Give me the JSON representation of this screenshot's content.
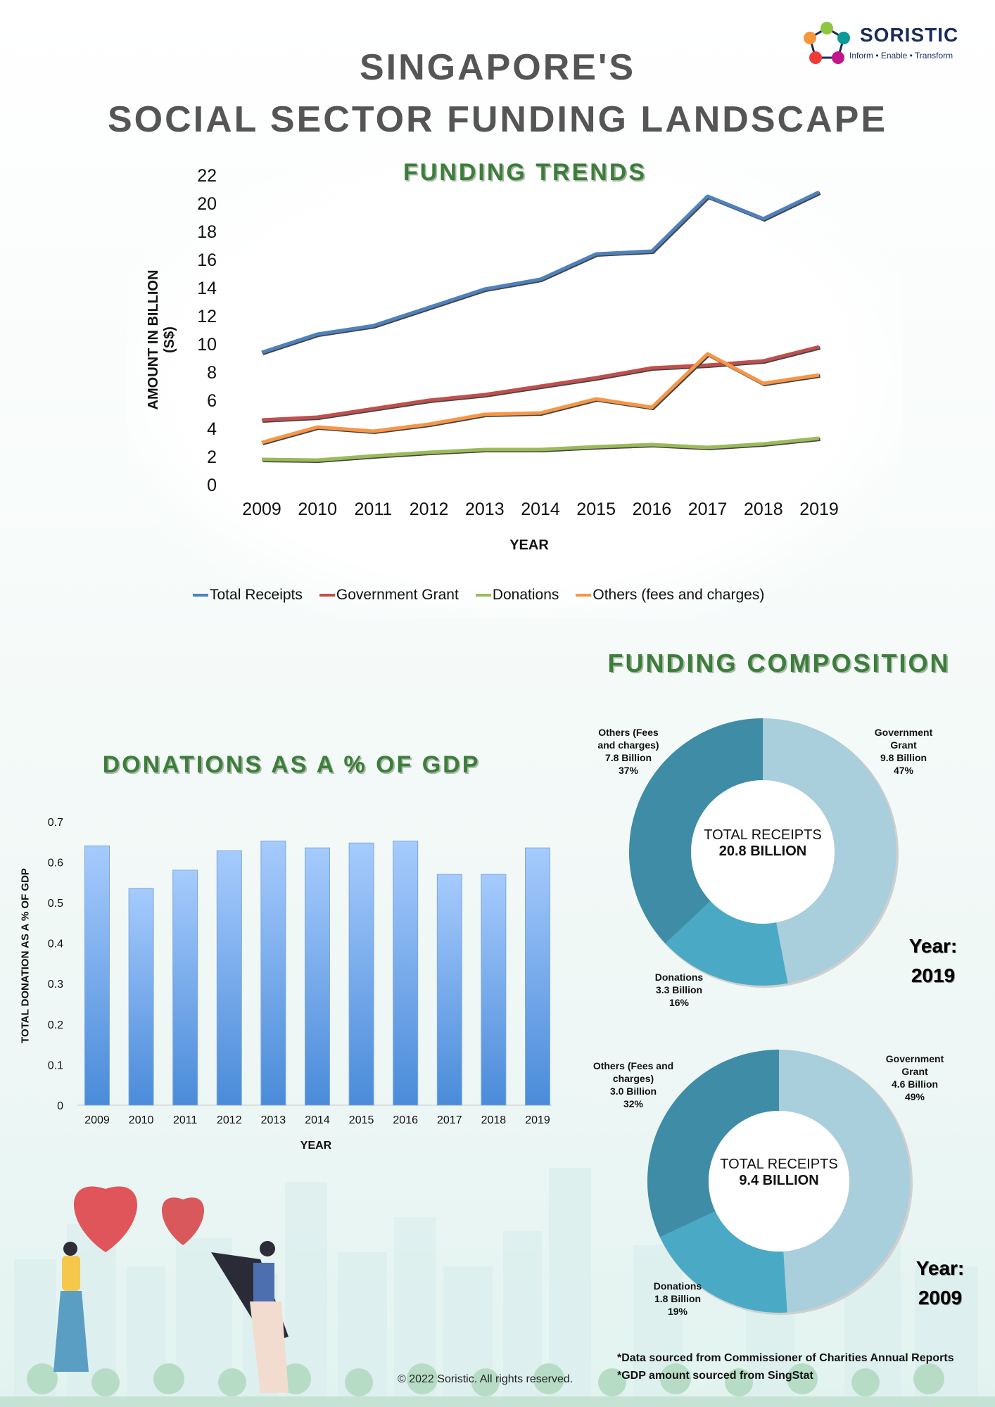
{
  "header": {
    "title_line1": "SINGAPORE'S",
    "title_line2": "SOCIAL SECTOR FUNDING LANDSCAPE",
    "logo_name": "SORISTIC",
    "logo_tagline": "Inform • Enable • Transform"
  },
  "colors": {
    "total": "#4f81bd",
    "gov": "#c0504d",
    "donations": "#9bbb59",
    "others": "#f79646",
    "title_green": "#3d7d3b",
    "bar": "#5b9be0",
    "donut_gov": "#a9cedc",
    "donut_don": "#4aaac5",
    "donut_oth": "#3e8ca5"
  },
  "chart_data": [
    {
      "type": "line",
      "title": "FUNDING TRENDS",
      "xlabel": "YEAR",
      "ylabel": "AMOUNT IN BILLION (S$)",
      "ylim": [
        0,
        22
      ],
      "yticks": [
        "0",
        "2",
        "4",
        "6",
        "8",
        "10",
        "12",
        "14",
        "16",
        "18",
        "20",
        "22"
      ],
      "categories": [
        "2009",
        "2010",
        "2011",
        "2012",
        "2013",
        "2014",
        "2015",
        "2016",
        "2017",
        "2018",
        "2019"
      ],
      "legend_position": "bottom",
      "series": [
        {
          "name": "Total Receipts",
          "color": "#4f81bd",
          "values": [
            9.4,
            10.7,
            11.3,
            12.6,
            13.9,
            14.6,
            16.4,
            16.6,
            20.5,
            18.9,
            20.8
          ]
        },
        {
          "name": "Government Grant",
          "color": "#c0504d",
          "values": [
            4.6,
            4.8,
            5.4,
            6.0,
            6.4,
            7.0,
            7.6,
            8.3,
            8.5,
            8.8,
            9.8
          ]
        },
        {
          "name": "Donations",
          "color": "#9bbb59",
          "values": [
            1.8,
            1.75,
            2.05,
            2.3,
            2.5,
            2.5,
            2.7,
            2.85,
            2.65,
            2.9,
            3.3
          ]
        },
        {
          "name": "Others (fees and charges)",
          "color": "#f79646",
          "values": [
            3.0,
            4.1,
            3.8,
            4.3,
            5.0,
            5.1,
            6.1,
            5.5,
            9.3,
            7.2,
            7.8
          ]
        }
      ]
    },
    {
      "type": "bar",
      "title": "DONATIONS AS A % OF GDP",
      "xlabel": "YEAR",
      "ylabel": "TOTAL DONATION AS A % OF GDP",
      "ylim": [
        0,
        0.7
      ],
      "yticks": [
        "0",
        "0.1",
        "0.2",
        "0.3",
        "0.4",
        "0.5",
        "0.6",
        "0.7"
      ],
      "categories": [
        "2009",
        "2010",
        "2011",
        "2012",
        "2013",
        "2014",
        "2015",
        "2016",
        "2017",
        "2018",
        "2019"
      ],
      "values": [
        0.64,
        0.535,
        0.58,
        0.628,
        0.652,
        0.635,
        0.647,
        0.652,
        0.57,
        0.57,
        0.635
      ]
    },
    {
      "type": "pie",
      "title": "FUNDING COMPOSITION",
      "year_label": "Year:",
      "year": "2019",
      "center_label": "TOTAL RECEIPTS",
      "center_value": "20.8 BILLION",
      "slices": [
        {
          "name": "Government Grant",
          "line1": "Government",
          "line2": "Grant",
          "amount": "9.8 Billion",
          "percent": "47%",
          "value": 47,
          "color": "#a9cedc"
        },
        {
          "name": "Donations",
          "line1": "Donations",
          "line2": "",
          "amount": "3.3 Billion",
          "percent": "16%",
          "value": 16,
          "color": "#4aaac5"
        },
        {
          "name": "Others (Fees and charges)",
          "line1": "Others (Fees",
          "line2": "and charges)",
          "amount": "7.8 Billion",
          "percent": "37%",
          "value": 37,
          "color": "#3e8ca5"
        }
      ]
    },
    {
      "type": "pie",
      "year_label": "Year:",
      "year": "2009",
      "center_label": "TOTAL RECEIPTS",
      "center_value": "9.4 BILLION",
      "slices": [
        {
          "name": "Government Grant",
          "line1": "Government",
          "line2": "Grant",
          "amount": "4.6 Billion",
          "percent": "49%",
          "value": 49,
          "color": "#a9cedc"
        },
        {
          "name": "Donations",
          "line1": "Donations",
          "line2": "",
          "amount": "1.8 Billion",
          "percent": "19%",
          "value": 19,
          "color": "#4aaac5"
        },
        {
          "name": "Others (Fees and charges)",
          "line1": "Others (Fees and",
          "line2": "charges)",
          "amount": "3.0 Billion",
          "percent": "32%",
          "value": 32,
          "color": "#3e8ca5"
        }
      ]
    }
  ],
  "footer": {
    "note1": "*Data sourced from  Commissioner of Charities Annual Reports",
    "note2": "*GDP amount sourced from SingStat",
    "copyright": "© 2022 Soristic. All rights reserved."
  }
}
